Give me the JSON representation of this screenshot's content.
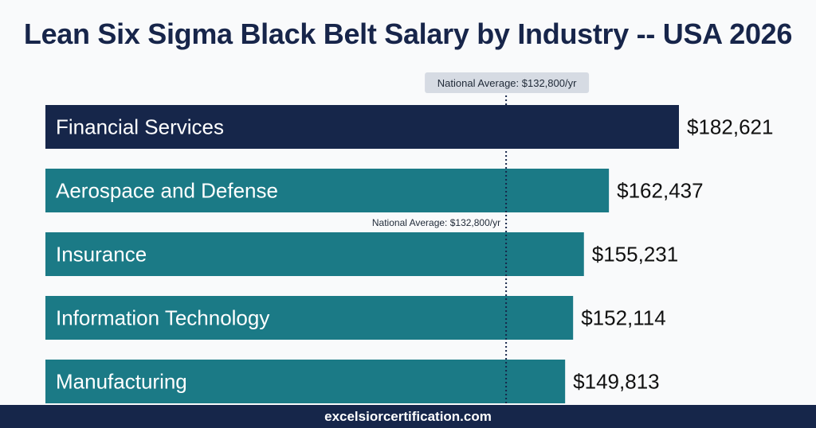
{
  "title": "Lean Six Sigma Black Belt Salary by Industry -- USA 2026",
  "footer": {
    "site": "excelsiorcertification.com"
  },
  "colors": {
    "highlight": "#16264a",
    "bar": "#1b7a86",
    "reference_line": "#16264a",
    "callout_bg": "#d6dbe3"
  },
  "chart_data": {
    "type": "bar",
    "orientation": "horizontal",
    "categories": [
      "Financial Services",
      "Aerospace and Defense",
      "Insurance",
      "Information Technology",
      "Manufacturing"
    ],
    "values": [
      182621,
      162437,
      155231,
      152114,
      149813
    ],
    "value_labels": [
      "$182,621",
      "$162,437",
      "$155,231",
      "$152,114",
      "$149,813"
    ],
    "reference_line": {
      "value": 132800,
      "label": "National Average: $132,800/yr"
    },
    "xlim": [
      0,
      182621
    ],
    "grid": false,
    "legend": "none"
  }
}
